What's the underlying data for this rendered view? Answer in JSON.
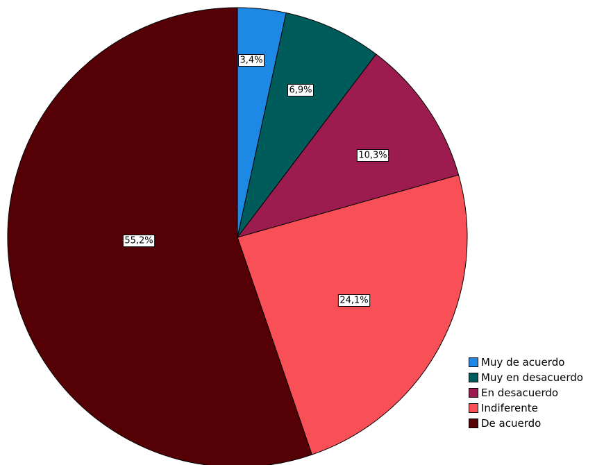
{
  "chart_data": {
    "type": "pie",
    "title": "",
    "slices": [
      {
        "name": "Muy de acuerdo",
        "value": 3.4,
        "label": "3,4%",
        "color": "#1E88E5"
      },
      {
        "name": "Muy en desacuerdo",
        "value": 6.9,
        "label": "6,9%",
        "color": "#005B5B"
      },
      {
        "name": "En desacuerdo",
        "value": 10.3,
        "label": "10,3%",
        "color": "#9C1C4F"
      },
      {
        "name": "Indiferente",
        "value": 24.1,
        "label": "24,1%",
        "color": "#F94F57"
      },
      {
        "name": "De acuerdo",
        "value": 55.2,
        "label": "55,2%",
        "color": "#550005"
      }
    ],
    "start_angle": "12 o'clock",
    "direction": "clockwise",
    "legend_position": "bottom-right"
  },
  "legend": {
    "items": [
      {
        "label": "Muy de acuerdo",
        "color": "#1E88E5"
      },
      {
        "label": "Muy en desacuerdo",
        "color": "#005B5B"
      },
      {
        "label": "En desacuerdo",
        "color": "#9C1C4F"
      },
      {
        "label": "Indiferente",
        "color": "#F94F57"
      },
      {
        "label": "De acuerdo",
        "color": "#550005"
      }
    ]
  }
}
